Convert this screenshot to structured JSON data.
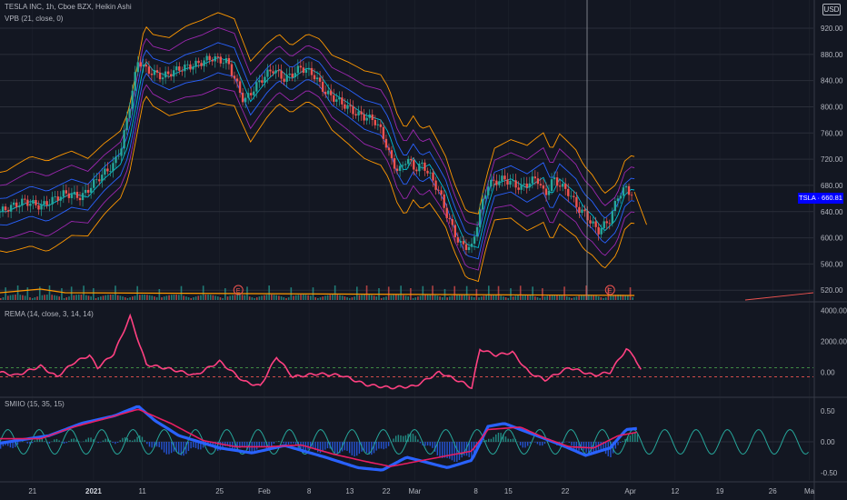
{
  "header": {
    "symbol_line": "TESLA INC, 1h, Cboe BZX, Heikin Ashi",
    "overlay_line": "VPB (21, close, 0)",
    "currency": "USD",
    "price_tag": "TSLA · 660.81"
  },
  "panes": {
    "rema_title": "REMA (14, close, 3, 14, 14)",
    "smio_title": "SMIIO (15, 35, 15)"
  },
  "markers": {
    "earnings_label": "E"
  },
  "chart_data": [
    {
      "type": "candlestick",
      "title": "TESLA INC, 1h, Cboe BZX, Heikin Ashi",
      "overlay": "VPB (21, close, 0)",
      "x_ticks": [
        "21",
        "2021",
        "11",
        "25",
        "Feb",
        "8",
        "13",
        "22",
        "Mar",
        "8",
        "15",
        "22",
        "Apr",
        "12",
        "19",
        "26",
        "Ma"
      ],
      "y_ticks": [
        520,
        560,
        600,
        640,
        680,
        720,
        760,
        800,
        840,
        880,
        920
      ],
      "ylim": [
        505,
        952
      ],
      "last_price": 660.81,
      "close_path": [
        [
          0,
          640
        ],
        [
          0.03,
          656
        ],
        [
          0.05,
          648
        ],
        [
          0.08,
          668
        ],
        [
          0.1,
          662
        ],
        [
          0.12,
          690
        ],
        [
          0.14,
          712
        ],
        [
          0.15,
          742
        ],
        [
          0.17,
          872
        ],
        [
          0.18,
          856
        ],
        [
          0.2,
          846
        ],
        [
          0.22,
          858
        ],
        [
          0.24,
          864
        ],
        [
          0.26,
          875
        ],
        [
          0.28,
          868
        ],
        [
          0.3,
          808
        ],
        [
          0.32,
          840
        ],
        [
          0.335,
          858
        ],
        [
          0.35,
          842
        ],
        [
          0.37,
          860
        ],
        [
          0.385,
          850
        ],
        [
          0.4,
          822
        ],
        [
          0.42,
          806
        ],
        [
          0.44,
          788
        ],
        [
          0.46,
          780
        ],
        [
          0.47,
          760
        ],
        [
          0.48,
          722
        ],
        [
          0.49,
          700
        ],
        [
          0.5,
          722
        ],
        [
          0.51,
          705
        ],
        [
          0.52,
          712
        ],
        [
          0.53,
          692
        ],
        [
          0.54,
          670
        ],
        [
          0.55,
          633
        ],
        [
          0.565,
          590
        ],
        [
          0.58,
          585
        ],
        [
          0.59,
          640
        ],
        [
          0.6,
          682
        ],
        [
          0.62,
          690
        ],
        [
          0.64,
          676
        ],
        [
          0.66,
          692
        ],
        [
          0.67,
          664
        ],
        [
          0.68,
          690
        ],
        [
          0.7,
          668
        ],
        [
          0.71,
          646
        ],
        [
          0.72,
          635
        ],
        [
          0.735,
          610
        ],
        [
          0.75,
          628
        ],
        [
          0.76,
          665
        ],
        [
          0.77,
          676
        ],
        [
          0.78,
          660.81
        ]
      ],
      "band_offsets": [
        -60,
        -40,
        -20,
        0,
        20,
        40,
        60
      ],
      "volume": {
        "baseline_label": "520.00"
      },
      "earnings_markers_x": [
        "Jan 27",
        "Apr 1"
      ]
    },
    {
      "type": "line",
      "title": "REMA (14, close, 3, 14, 14)",
      "y_ticks": [
        0,
        2000,
        4000
      ],
      "ylim": [
        -1500,
        4200
      ],
      "guide_levels": [
        300,
        -300
      ],
      "series": [
        {
          "values_path": [
            [
              0,
              0
            ],
            [
              0.02,
              -200
            ],
            [
              0.05,
              400
            ],
            [
              0.07,
              -300
            ],
            [
              0.09,
              600
            ],
            [
              0.11,
              1100
            ],
            [
              0.12,
              300
            ],
            [
              0.14,
              1200
            ],
            [
              0.16,
              3600
            ],
            [
              0.18,
              500
            ],
            [
              0.21,
              200
            ],
            [
              0.24,
              -200
            ],
            [
              0.27,
              700
            ],
            [
              0.3,
              -600
            ],
            [
              0.32,
              -900
            ],
            [
              0.34,
              1000
            ],
            [
              0.36,
              -300
            ],
            [
              0.39,
              -100
            ],
            [
              0.42,
              -200
            ],
            [
              0.45,
              -800
            ],
            [
              0.48,
              -1000
            ],
            [
              0.51,
              -900
            ],
            [
              0.54,
              0
            ],
            [
              0.57,
              -700
            ],
            [
              0.58,
              -1000
            ],
            [
              0.59,
              1500
            ],
            [
              0.61,
              1100
            ],
            [
              0.63,
              1300
            ],
            [
              0.65,
              0
            ],
            [
              0.67,
              -500
            ],
            [
              0.7,
              300
            ],
            [
              0.73,
              -200
            ],
            [
              0.75,
              0
            ],
            [
              0.77,
              1500
            ],
            [
              0.78,
              1000
            ],
            [
              0.79,
              -100
            ]
          ]
        }
      ]
    },
    {
      "type": "line",
      "title": "SMIIO (15, 35, 15)",
      "y_ticks": [
        0.5,
        0,
        -0.5
      ],
      "ylim": [
        -0.62,
        0.68
      ],
      "series": [
        {
          "name_hint": "signal",
          "values_path": [
            [
              0,
              0.05
            ],
            [
              0.05,
              0.05
            ],
            [
              0.09,
              0.24
            ],
            [
              0.13,
              0.38
            ],
            [
              0.17,
              0.53
            ],
            [
              0.21,
              0.3
            ],
            [
              0.25,
              0.02
            ],
            [
              0.29,
              -0.08
            ],
            [
              0.33,
              -0.08
            ],
            [
              0.37,
              -0.05
            ],
            [
              0.41,
              -0.2
            ],
            [
              0.45,
              -0.32
            ],
            [
              0.48,
              -0.4
            ],
            [
              0.52,
              -0.3
            ],
            [
              0.56,
              -0.2
            ],
            [
              0.58,
              -0.15
            ],
            [
              0.6,
              0.2
            ],
            [
              0.64,
              0.24
            ],
            [
              0.67,
              0.06
            ],
            [
              0.7,
              -0.08
            ],
            [
              0.73,
              -0.1
            ],
            [
              0.76,
              0.1
            ],
            [
              0.785,
              0.16
            ]
          ]
        },
        {
          "name_hint": "oscillator",
          "values_path": [
            [
              0,
              -0.02
            ],
            [
              0.06,
              0.1
            ],
            [
              0.1,
              0.3
            ],
            [
              0.14,
              0.42
            ],
            [
              0.17,
              0.58
            ],
            [
              0.19,
              0.35
            ],
            [
              0.22,
              0.1
            ],
            [
              0.27,
              -0.1
            ],
            [
              0.31,
              -0.18
            ],
            [
              0.35,
              -0.06
            ],
            [
              0.4,
              -0.25
            ],
            [
              0.44,
              -0.42
            ],
            [
              0.47,
              -0.46
            ],
            [
              0.5,
              -0.25
            ],
            [
              0.55,
              -0.42
            ],
            [
              0.58,
              -0.3
            ],
            [
              0.6,
              0.25
            ],
            [
              0.62,
              0.3
            ],
            [
              0.66,
              0.1
            ],
            [
              0.69,
              -0.05
            ],
            [
              0.72,
              -0.22
            ],
            [
              0.75,
              -0.1
            ],
            [
              0.77,
              0.2
            ],
            [
              0.785,
              0.22
            ]
          ]
        }
      ],
      "cycle_amplitude": 0.2,
      "cycle_count": 26
    }
  ],
  "colors": {
    "bg": "#131722",
    "grid": "#2a2e39",
    "up": "#26a69a",
    "down": "#ef5350",
    "rema": "#ff4081",
    "band_outer": "#ff9800",
    "band_mid": "#9c27b0",
    "band_inner": "#2962ff",
    "band_center": "#00bcd4",
    "smio_signal": "#e91e63",
    "smio_osc": "#2962ff",
    "smio_cycle": "#26a69a"
  }
}
